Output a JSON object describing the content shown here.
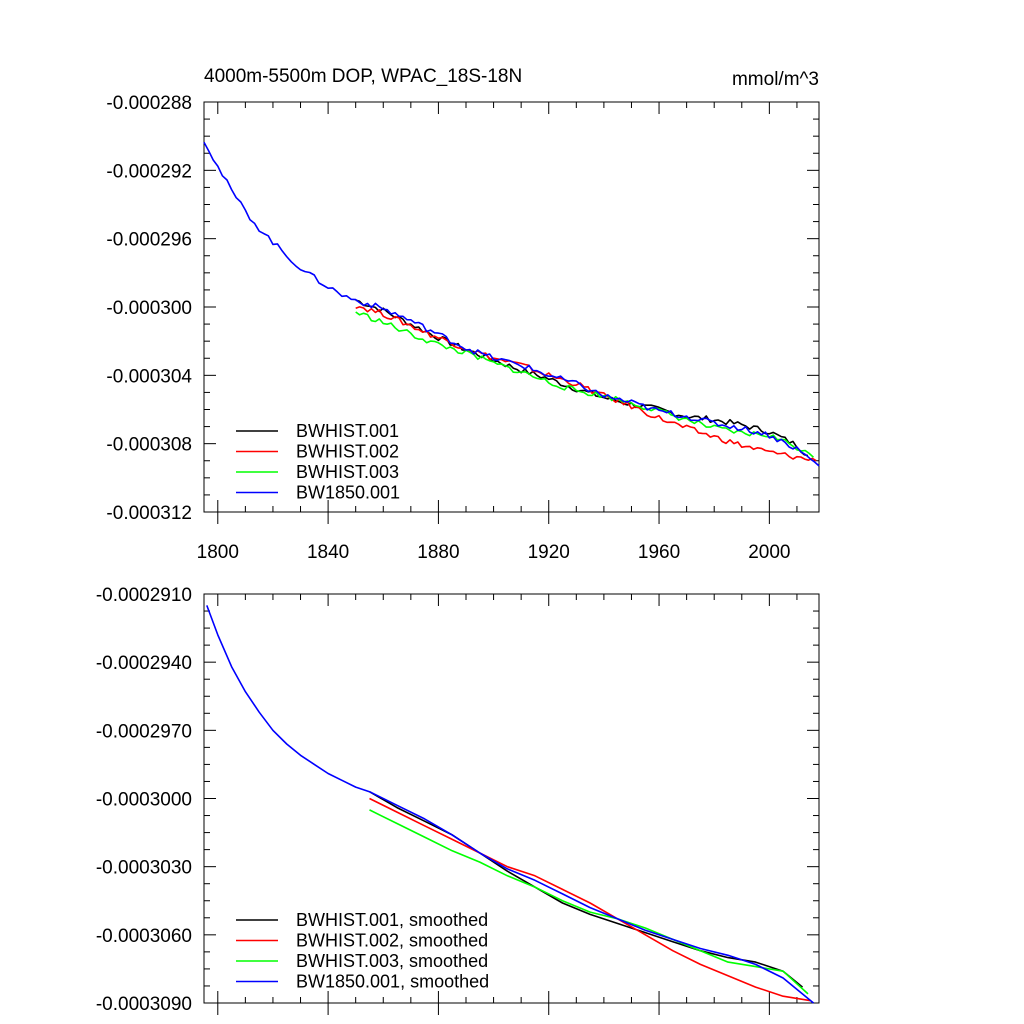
{
  "chart_data": [
    {
      "type": "line",
      "title": "4000m-5500m DOP, WPAC_18S-18N",
      "units": "mmol/m^3",
      "xlabel": "",
      "ylabel": "",
      "xlim": [
        1795,
        2018
      ],
      "ylim": [
        -0.000312,
        -0.000288
      ],
      "xticks": [
        1800,
        1840,
        1880,
        1920,
        1960,
        2000
      ],
      "yticks": [
        -0.000288,
        -0.000292,
        -0.000296,
        -0.0003,
        -0.000304,
        -0.000308,
        -0.000312
      ],
      "ytick_labels": [
        "-0.000288",
        "-0.000292",
        "-0.000296",
        "-0.000300",
        "-0.000304",
        "-0.000308",
        "-0.000312"
      ],
      "legend": "bottom-left",
      "series": [
        {
          "name": "BWHIST.001",
          "color": "#000000",
          "x": [
            1850,
            1860,
            1870,
            1880,
            1890,
            1900,
            1910,
            1920,
            1930,
            1940,
            1950,
            1960,
            1970,
            1980,
            1990,
            2000,
            2010,
            2014
          ],
          "values": [
            -0.0002996,
            -0.0003002,
            -0.000301,
            -0.0003018,
            -0.0003025,
            -0.0003031,
            -0.0003037,
            -0.0003042,
            -0.0003048,
            -0.0003053,
            -0.0003057,
            -0.000306,
            -0.0003064,
            -0.0003066,
            -0.0003069,
            -0.0003073,
            -0.0003081,
            -0.0003087
          ]
        },
        {
          "name": "BWHIST.002",
          "color": "#ff0000",
          "x": [
            1850,
            1860,
            1870,
            1880,
            1890,
            1900,
            1910,
            1920,
            1930,
            1940,
            1950,
            1960,
            1970,
            1980,
            1990,
            2000,
            2010,
            2017
          ],
          "values": [
            -0.0002999,
            -0.0003004,
            -0.0003011,
            -0.0003018,
            -0.0003024,
            -0.000303,
            -0.0003034,
            -0.000304,
            -0.0003045,
            -0.0003052,
            -0.0003058,
            -0.0003065,
            -0.0003071,
            -0.0003076,
            -0.0003081,
            -0.0003085,
            -0.0003088,
            -0.000309
          ]
        },
        {
          "name": "BWHIST.003",
          "color": "#00ff00",
          "x": [
            1850,
            1860,
            1870,
            1880,
            1890,
            1900,
            1910,
            1920,
            1930,
            1940,
            1950,
            1960,
            1970,
            1980,
            1990,
            2000,
            2010,
            2016
          ],
          "values": [
            -0.0003003,
            -0.0003009,
            -0.0003016,
            -0.0003022,
            -0.0003027,
            -0.0003033,
            -0.0003038,
            -0.0003044,
            -0.0003049,
            -0.0003052,
            -0.0003056,
            -0.0003061,
            -0.0003066,
            -0.0003071,
            -0.0003074,
            -0.0003075,
            -0.0003082,
            -0.0003088
          ]
        },
        {
          "name": "BW1850.001",
          "color": "#0000ff",
          "x": [
            1795,
            1800,
            1805,
            1810,
            1815,
            1820,
            1825,
            1830,
            1835,
            1840,
            1845,
            1850,
            1860,
            1870,
            1880,
            1890,
            1900,
            1910,
            1920,
            1930,
            1940,
            1950,
            1960,
            1970,
            1980,
            1990,
            2000,
            2010,
            2018
          ],
          "values": [
            -0.0002902,
            -0.0002918,
            -0.0002932,
            -0.0002944,
            -0.0002954,
            -0.0002962,
            -0.000297,
            -0.0002977,
            -0.0002983,
            -0.0002988,
            -0.0002993,
            -0.0002996,
            -0.0003001,
            -0.0003008,
            -0.0003016,
            -0.0003024,
            -0.000303,
            -0.0003034,
            -0.000304,
            -0.0003045,
            -0.0003052,
            -0.0003056,
            -0.0003061,
            -0.0003064,
            -0.0003068,
            -0.0003071,
            -0.0003075,
            -0.0003083,
            -0.0003093
          ]
        }
      ]
    },
    {
      "type": "line",
      "title": "",
      "units": "",
      "xlabel": "",
      "ylabel": "",
      "xlim": [
        1795,
        2018
      ],
      "ylim": [
        -0.000309,
        -0.000291
      ],
      "xticks": [
        1800,
        1840,
        1880,
        1920,
        1960,
        2000
      ],
      "xtick_labels_shown": false,
      "yticks": [
        -0.000291,
        -0.000294,
        -0.000297,
        -0.0003,
        -0.000303,
        -0.000306,
        -0.000309
      ],
      "ytick_labels": [
        "-0.0002910",
        "-0.0002940",
        "-0.0002970",
        "-0.0003000",
        "-0.0003030",
        "-0.0003060",
        "-0.0003090"
      ],
      "legend": "bottom-left",
      "series": [
        {
          "name": "BWHIST.001, smoothed",
          "color": "#000000",
          "x": [
            1855,
            1865,
            1875,
            1885,
            1895,
            1905,
            1915,
            1925,
            1935,
            1945,
            1955,
            1965,
            1975,
            1985,
            1995,
            2005,
            2012
          ],
          "values": [
            -0.0002997,
            -0.0003004,
            -0.000301,
            -0.0003016,
            -0.0003024,
            -0.0003032,
            -0.0003039,
            -0.0003046,
            -0.0003051,
            -0.0003055,
            -0.0003059,
            -0.0003063,
            -0.0003067,
            -0.000307,
            -0.0003072,
            -0.0003076,
            -0.0003083
          ]
        },
        {
          "name": "BWHIST.002, smoothed",
          "color": "#ff0000",
          "x": [
            1855,
            1865,
            1875,
            1885,
            1895,
            1905,
            1915,
            1925,
            1935,
            1945,
            1955,
            1965,
            1975,
            1985,
            1995,
            2005,
            2015
          ],
          "values": [
            -0.0003,
            -0.0003006,
            -0.0003012,
            -0.0003018,
            -0.0003024,
            -0.000303,
            -0.0003034,
            -0.000304,
            -0.0003046,
            -0.0003053,
            -0.000306,
            -0.0003067,
            -0.0003073,
            -0.0003078,
            -0.0003083,
            -0.0003087,
            -0.0003089
          ]
        },
        {
          "name": "BWHIST.003, smoothed",
          "color": "#00ff00",
          "x": [
            1855,
            1865,
            1875,
            1885,
            1895,
            1905,
            1915,
            1925,
            1935,
            1945,
            1955,
            1965,
            1975,
            1985,
            1995,
            2005,
            2014
          ],
          "values": [
            -0.0003005,
            -0.0003011,
            -0.0003017,
            -0.0003023,
            -0.0003028,
            -0.0003034,
            -0.0003039,
            -0.0003045,
            -0.000305,
            -0.0003053,
            -0.0003057,
            -0.0003062,
            -0.0003067,
            -0.0003072,
            -0.0003074,
            -0.0003076,
            -0.0003086
          ]
        },
        {
          "name": "BW1850.001, smoothed",
          "color": "#0000ff",
          "x": [
            1796,
            1800,
            1805,
            1810,
            1815,
            1820,
            1825,
            1830,
            1835,
            1840,
            1845,
            1850,
            1855,
            1865,
            1875,
            1885,
            1895,
            1905,
            1915,
            1925,
            1935,
            1945,
            1955,
            1965,
            1975,
            1985,
            1995,
            2005,
            2016
          ],
          "values": [
            -0.0002915,
            -0.0002928,
            -0.0002942,
            -0.0002953,
            -0.0002962,
            -0.000297,
            -0.0002976,
            -0.0002981,
            -0.0002985,
            -0.0002989,
            -0.0002992,
            -0.0002995,
            -0.0002997,
            -0.0003003,
            -0.0003009,
            -0.0003016,
            -0.0003024,
            -0.0003031,
            -0.0003036,
            -0.0003042,
            -0.0003048,
            -0.0003053,
            -0.0003058,
            -0.0003062,
            -0.0003066,
            -0.0003069,
            -0.0003073,
            -0.0003079,
            -0.000309
          ]
        }
      ]
    }
  ]
}
